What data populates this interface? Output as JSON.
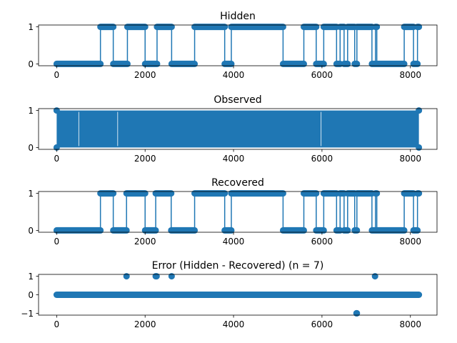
{
  "style": {
    "series_color": "#1f77b4"
  },
  "chart_data": [
    {
      "type": "line",
      "marker": "o",
      "title": "Hidden",
      "xlabel": "",
      "ylabel": "",
      "xlim": [
        0,
        8192
      ],
      "ylim": [
        0,
        1
      ],
      "xticks": [
        0,
        2000,
        4000,
        6000,
        8000
      ],
      "yticks": [
        0,
        1
      ],
      "segments": [
        {
          "x": [
            0,
            990
          ],
          "y": 0
        },
        {
          "x": [
            990,
            1280
          ],
          "y": 1
        },
        {
          "x": [
            1280,
            1600
          ],
          "y": 0
        },
        {
          "x": [
            1600,
            2000
          ],
          "y": 1
        },
        {
          "x": [
            2000,
            2270
          ],
          "y": 0
        },
        {
          "x": [
            2270,
            2600
          ],
          "y": 1
        },
        {
          "x": [
            2600,
            3120
          ],
          "y": 0
        },
        {
          "x": [
            3120,
            3800
          ],
          "y": 1
        },
        {
          "x": [
            3800,
            3950
          ],
          "y": 0
        },
        {
          "x": [
            3950,
            5120
          ],
          "y": 1
        },
        {
          "x": [
            5120,
            5590
          ],
          "y": 0
        },
        {
          "x": [
            5590,
            5870
          ],
          "y": 1
        },
        {
          "x": [
            5870,
            6040
          ],
          "y": 0
        },
        {
          "x": [
            6040,
            6330
          ],
          "y": 1
        },
        {
          "x": [
            6330,
            6410
          ],
          "y": 0
        },
        {
          "x": [
            6410,
            6500
          ],
          "y": 1
        },
        {
          "x": [
            6500,
            6580
          ],
          "y": 0
        },
        {
          "x": [
            6580,
            6740
          ],
          "y": 1
        },
        {
          "x": [
            6740,
            6790
          ],
          "y": 0
        },
        {
          "x": [
            6790,
            7130
          ],
          "y": 1
        },
        {
          "x": [
            7130,
            7210
          ],
          "y": 0
        },
        {
          "x": [
            7210,
            7240
          ],
          "y": 1
        },
        {
          "x": [
            7240,
            7860
          ],
          "y": 0
        },
        {
          "x": [
            7860,
            8070
          ],
          "y": 1
        },
        {
          "x": [
            8070,
            8160
          ],
          "y": 0
        },
        {
          "x": [
            8160,
            8192
          ],
          "y": 1
        }
      ]
    },
    {
      "type": "line",
      "marker": "o",
      "title": "Observed",
      "xlabel": "",
      "ylabel": "",
      "xlim": [
        0,
        8192
      ],
      "ylim": [
        0,
        1
      ],
      "xticks": [
        0,
        2000,
        4000,
        6000,
        8000
      ],
      "yticks": [
        0,
        1
      ],
      "dense_fill_x": [
        0,
        8192
      ],
      "start_value": 0,
      "gaps_x": [
        500,
        1380,
        5980
      ]
    },
    {
      "type": "line",
      "marker": "o",
      "title": "Recovered",
      "xlabel": "",
      "ylabel": "",
      "xlim": [
        0,
        8192
      ],
      "ylim": [
        0,
        1
      ],
      "xticks": [
        0,
        2000,
        4000,
        6000,
        8000
      ],
      "yticks": [
        0,
        1
      ],
      "segments": [
        {
          "x": [
            0,
            990
          ],
          "y": 0
        },
        {
          "x": [
            990,
            1280
          ],
          "y": 1
        },
        {
          "x": [
            1280,
            1580
          ],
          "y": 0
        },
        {
          "x": [
            1580,
            2000
          ],
          "y": 1
        },
        {
          "x": [
            2000,
            2240
          ],
          "y": 0
        },
        {
          "x": [
            2240,
            2590
          ],
          "y": 1
        },
        {
          "x": [
            2590,
            3120
          ],
          "y": 0
        },
        {
          "x": [
            3120,
            3800
          ],
          "y": 1
        },
        {
          "x": [
            3800,
            3950
          ],
          "y": 0
        },
        {
          "x": [
            3950,
            5120
          ],
          "y": 1
        },
        {
          "x": [
            5120,
            5590
          ],
          "y": 0
        },
        {
          "x": [
            5590,
            5870
          ],
          "y": 1
        },
        {
          "x": [
            5870,
            6040
          ],
          "y": 0
        },
        {
          "x": [
            6040,
            6330
          ],
          "y": 1
        },
        {
          "x": [
            6330,
            6410
          ],
          "y": 0
        },
        {
          "x": [
            6410,
            6500
          ],
          "y": 1
        },
        {
          "x": [
            6500,
            6580
          ],
          "y": 0
        },
        {
          "x": [
            6580,
            6740
          ],
          "y": 1
        },
        {
          "x": [
            6740,
            6790
          ],
          "y": 0
        },
        {
          "x": [
            6790,
            7130
          ],
          "y": 1
        },
        {
          "x": [
            7130,
            7210
          ],
          "y": 0
        },
        {
          "x": [
            7210,
            7240
          ],
          "y": 1
        },
        {
          "x": [
            7240,
            7860
          ],
          "y": 0
        },
        {
          "x": [
            7860,
            8070
          ],
          "y": 1
        },
        {
          "x": [
            8070,
            8160
          ],
          "y": 0
        },
        {
          "x": [
            8160,
            8192
          ],
          "y": 1
        }
      ]
    },
    {
      "type": "scatter",
      "title": "Error (Hidden - Recovered) (n = 7)",
      "xlabel": "",
      "ylabel": "",
      "xlim": [
        0,
        8192
      ],
      "ylim": [
        -1,
        1
      ],
      "xticks": [
        0,
        2000,
        4000,
        6000,
        8000
      ],
      "yticks": [
        -1,
        0,
        1
      ],
      "ytick_labels": [
        "−1",
        "0",
        "1"
      ],
      "baseline": {
        "x": [
          0,
          8192
        ],
        "y": 0
      },
      "points": [
        {
          "x": 1580,
          "y": 1
        },
        {
          "x": 2240,
          "y": 1
        },
        {
          "x": 2260,
          "y": 1
        },
        {
          "x": 2600,
          "y": 1
        },
        {
          "x": 7200,
          "y": 1
        },
        {
          "x": 6780,
          "y": -1
        },
        {
          "x": 6790,
          "y": -1
        }
      ]
    }
  ]
}
